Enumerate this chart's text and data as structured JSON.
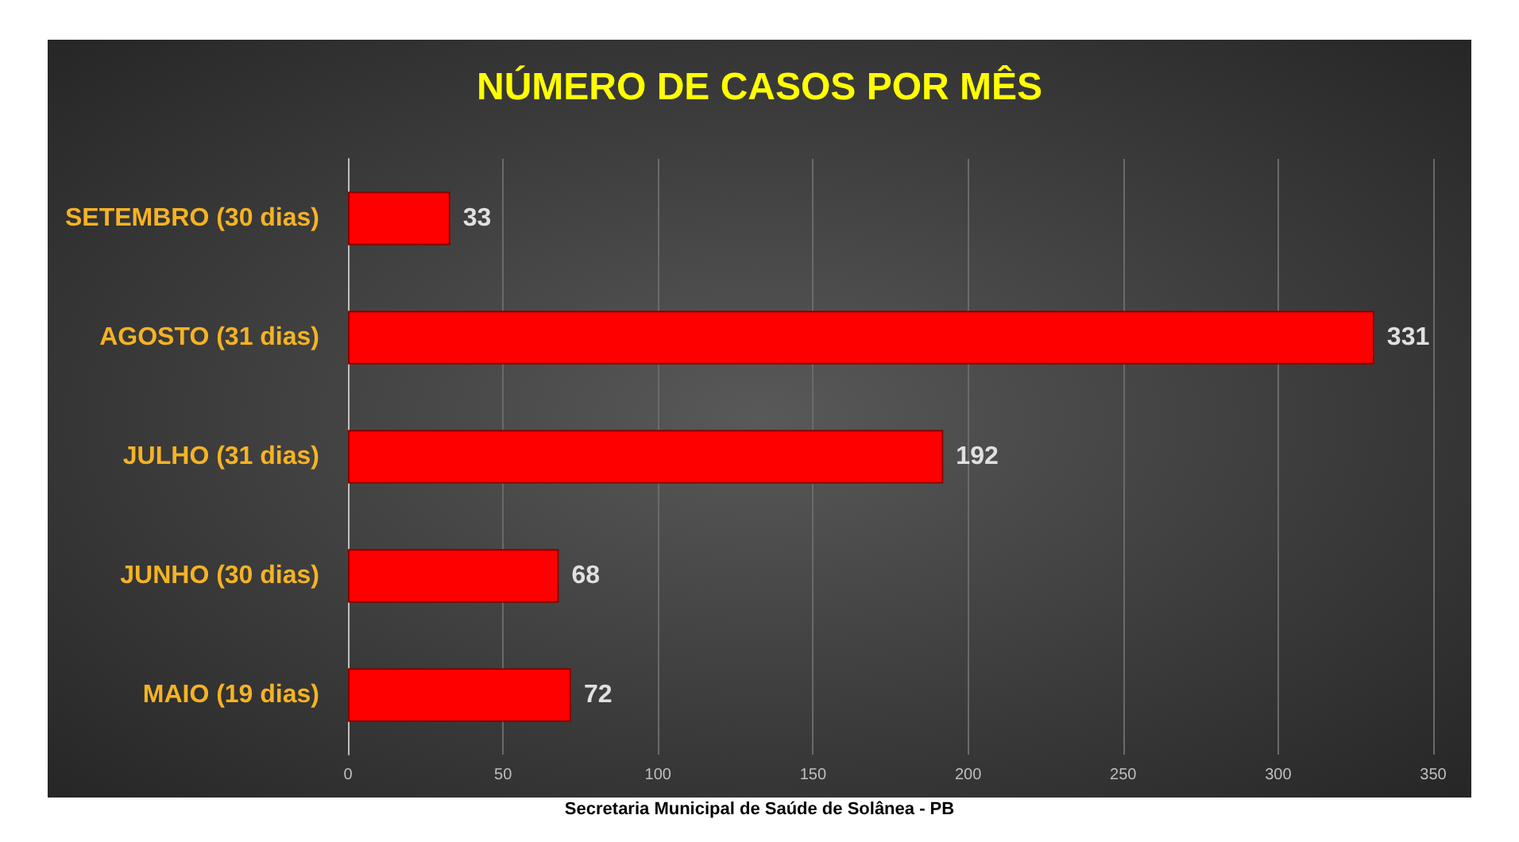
{
  "chart_data": {
    "type": "bar",
    "orientation": "horizontal",
    "title": "NÚMERO DE CASOS POR MÊS",
    "categories": [
      "SETEMBRO (30 dias)",
      "AGOSTO (31 dias)",
      "JULHO (31 dias)",
      "JUNHO (30 dias)",
      "MAIO (19 dias)"
    ],
    "values": [
      33,
      331,
      192,
      68,
      72
    ],
    "color": "#ff0000",
    "xlim": [
      0,
      350
    ],
    "xticks": [
      0,
      50,
      100,
      150,
      200,
      250,
      300,
      350
    ],
    "grid": "x",
    "data_labels": true,
    "annotations": [
      "Secretaria Municipal de Saúde de Solânea - PB"
    ]
  }
}
